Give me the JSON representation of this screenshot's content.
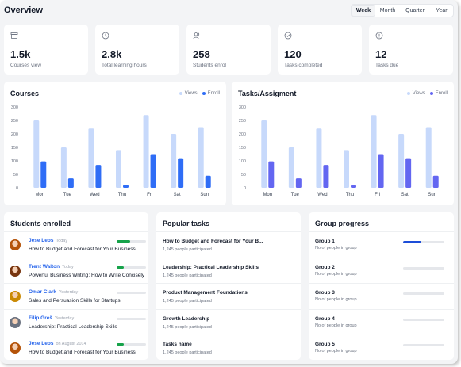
{
  "header": {
    "title": "Overview",
    "period_tabs": [
      "Week",
      "Month",
      "Quarter",
      "Year"
    ],
    "active_period": "Week"
  },
  "stats": [
    {
      "icon": "archive-icon",
      "value": "1.5k",
      "label": "Courses view"
    },
    {
      "icon": "clock-icon",
      "value": "2.8k",
      "label": "Total learning hours"
    },
    {
      "icon": "users-icon",
      "value": "258",
      "label": "Students enrol"
    },
    {
      "icon": "check-circle-icon",
      "value": "120",
      "label": "Tasks completed"
    },
    {
      "icon": "alert-circle-icon",
      "value": "12",
      "label": "Tasks due"
    }
  ],
  "colors": {
    "views": "#c7d9fb",
    "enroll_courses": "#2f6df6",
    "enroll_tasks": "#6366f1",
    "progress_green": "#16a34a",
    "progress_blue": "#1d4ed8"
  },
  "chart_data": [
    {
      "type": "bar",
      "title": "Courses",
      "categories": [
        "Mon",
        "Tue",
        "Wed",
        "Thu",
        "Fri",
        "Sat",
        "Sun"
      ],
      "series": [
        {
          "name": "Views",
          "values": [
            250,
            150,
            220,
            140,
            270,
            200,
            225
          ]
        },
        {
          "name": "Enroll",
          "values": [
            98,
            35,
            85,
            10,
            125,
            110,
            45
          ]
        }
      ],
      "yticks": [
        0,
        50,
        100,
        150,
        200,
        250,
        300
      ],
      "ylim": [
        0,
        300
      ],
      "legend": "top-right"
    },
    {
      "type": "bar",
      "title": "Tasks/Assigment",
      "categories": [
        "Mon",
        "Tue",
        "Wed",
        "Thu",
        "Fri",
        "Sat",
        "Sun"
      ],
      "series": [
        {
          "name": "Views",
          "values": [
            250,
            150,
            220,
            140,
            270,
            200,
            225
          ]
        },
        {
          "name": "Enroll",
          "values": [
            98,
            35,
            85,
            10,
            125,
            110,
            45
          ]
        }
      ],
      "yticks": [
        0,
        50,
        100,
        150,
        200,
        250,
        300
      ],
      "ylim": [
        0,
        300
      ],
      "legend": "top-right"
    }
  ],
  "students": {
    "title": "Students enrolled",
    "items": [
      {
        "name": "Jese Leos",
        "time": "Today",
        "course": "How to Budget and Forecast for Your Business",
        "progress": 0.45,
        "avatar_color": "#b45309"
      },
      {
        "name": "Trent Walton",
        "time": "Today",
        "course": "Powerful Business Writing: How to Write Concisely",
        "progress": 0.25,
        "avatar_color": "#78350f"
      },
      {
        "name": "Omar Clark",
        "time": "Yesterday",
        "course": "Sales and Persuasion Skills for Startups",
        "progress": 0.0,
        "avatar_color": "#ca8a04"
      },
      {
        "name": "Filip Greš",
        "time": "Yesterday",
        "course": "Leadership: Practical Leadership Skills",
        "progress": 0.0,
        "avatar_color": "#6b7280"
      },
      {
        "name": "Jese Leos",
        "time": "on August 2014",
        "course": "How to Budget and Forecast for Your Business",
        "progress": 0.25,
        "avatar_color": "#b45309"
      }
    ]
  },
  "tasks": {
    "title": "Popular tasks",
    "items": [
      {
        "name": "How to Budget and Forecast for Your B...",
        "meta": "1,245 people participated"
      },
      {
        "name": "Leadership: Practical Leadership Skills",
        "meta": "1,245 people participated"
      },
      {
        "name": "Product Management Foundations",
        "meta": "1,245 people participated"
      },
      {
        "name": "Growth Leadership",
        "meta": "1,245 people participated"
      },
      {
        "name": "Tasks name",
        "meta": "1,245 people participated"
      }
    ]
  },
  "groups": {
    "title": "Group progress",
    "items": [
      {
        "name": "Group 1",
        "meta": "No of people in group",
        "progress": 0.45
      },
      {
        "name": "Group 2",
        "meta": "No of people in group",
        "progress": 0.0
      },
      {
        "name": "Group 3",
        "meta": "No of people in group",
        "progress": 0.0
      },
      {
        "name": "Group 4",
        "meta": "No of people in group",
        "progress": 0.0
      },
      {
        "name": "Group 5",
        "meta": "No of people in group",
        "progress": 0.0
      }
    ]
  }
}
